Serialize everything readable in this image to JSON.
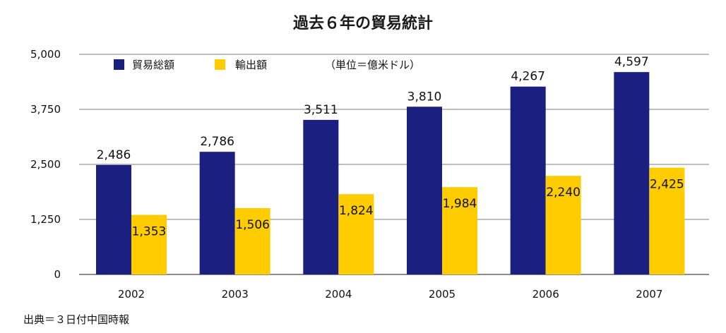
{
  "chart_data": {
    "type": "bar",
    "title": "過去６年の貿易統計",
    "unit_note": "（単位＝億米ドル）",
    "source": "出典＝３日付中国時報",
    "categories": [
      "2002",
      "2003",
      "2004",
      "2005",
      "2006",
      "2007"
    ],
    "series": [
      {
        "name": "貿易総額",
        "color": "#1b2080",
        "values": [
          2486,
          2786,
          3511,
          3810,
          4267,
          4597
        ],
        "labels": [
          "2,486",
          "2,786",
          "3,511",
          "3,810",
          "4,267",
          "4,597"
        ]
      },
      {
        "name": "輸出額",
        "color": "#ffcc00",
        "values": [
          1353,
          1506,
          1824,
          1984,
          2240,
          2425
        ],
        "labels": [
          "1,353",
          "1,506",
          "1,824",
          "1,984",
          "2,240",
          "2,425"
        ]
      }
    ],
    "ylim": [
      0,
      5000
    ],
    "yticks": [
      0,
      1250,
      2500,
      3750,
      5000
    ],
    "ytick_labels": [
      "0",
      "1,250",
      "2,500",
      "3,750",
      "5,000"
    ],
    "grid": true,
    "legend_position": "top-left"
  }
}
